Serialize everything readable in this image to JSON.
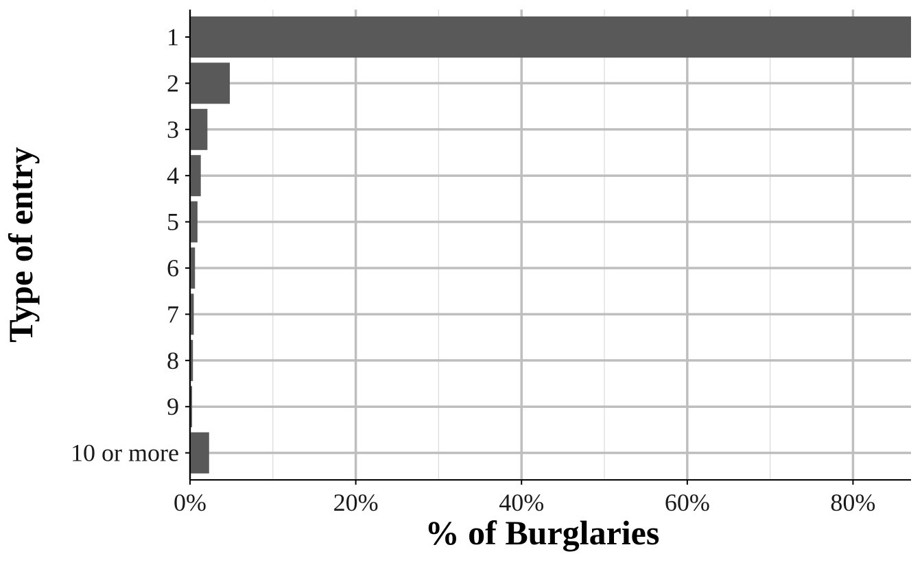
{
  "chart_data": {
    "type": "bar",
    "orientation": "horizontal",
    "title": "",
    "xlabel": "% of Burglaries",
    "ylabel": "Type of entry",
    "categories": [
      "1",
      "2",
      "3",
      "4",
      "5",
      "6",
      "7",
      "8",
      "9",
      "10 or more"
    ],
    "values": [
      87.0,
      4.8,
      2.1,
      1.3,
      0.9,
      0.6,
      0.45,
      0.35,
      0.25,
      2.3
    ],
    "xlim": [
      0,
      87
    ],
    "xticks": [
      0,
      20,
      40,
      60,
      80
    ],
    "xtick_labels": [
      "0%",
      "20%",
      "40%",
      "60%",
      "80%"
    ],
    "grid": true,
    "colors": {
      "bar": "#595959",
      "grid_major": "#bebebe",
      "grid_minor": "#d9d9d9",
      "axis": "#000000"
    }
  }
}
